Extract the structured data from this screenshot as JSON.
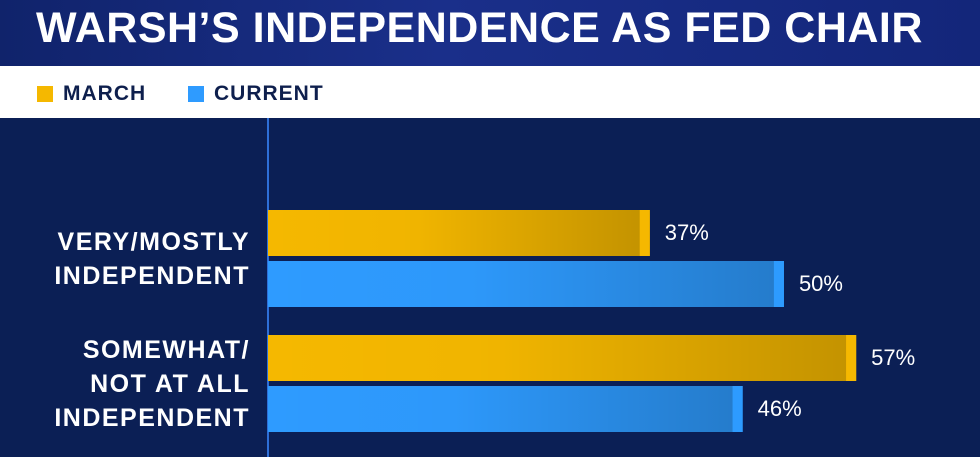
{
  "chart_data": {
    "type": "bar",
    "orientation": "horizontal",
    "title": "WARSH’S INDEPENDENCE AS FED CHAIR",
    "categories": [
      "VERY/MOSTLY INDEPENDENT",
      "SOMEWHAT/ NOT AT ALL INDEPENDENT"
    ],
    "series": [
      {
        "name": "MARCH",
        "color": "#f5b800",
        "values": [
          37,
          57
        ],
        "value_labels": [
          "37%",
          "57%"
        ]
      },
      {
        "name": "CURRENT",
        "color": "#2e9bff",
        "values": [
          50,
          46
        ],
        "value_labels": [
          "50%",
          "46%"
        ]
      }
    ],
    "xlim": [
      0,
      69
    ]
  }
}
